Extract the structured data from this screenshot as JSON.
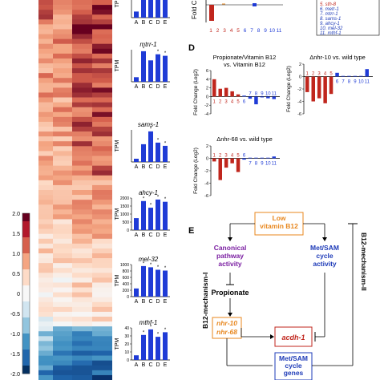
{
  "colorbar": {
    "ticks": [
      "2.0",
      "1.5",
      "1.0",
      "0.5",
      "0",
      "-0.5",
      "-1.0",
      "-1.5",
      "-2.0"
    ]
  },
  "expression_panels": [
    {
      "gene": "",
      "ylabel": "TPM",
      "categories": [
        "A",
        "B",
        "C",
        "D",
        "E"
      ],
      "values": [
        0.2,
        1.0,
        1.0,
        1.0,
        1.0
      ],
      "stars": [
        false,
        false,
        false,
        false,
        false
      ]
    },
    {
      "gene": "mtrr-1",
      "ylabel": "TPM",
      "categories": [
        "A",
        "B",
        "C",
        "D",
        "E"
      ],
      "values": [
        0.15,
        1.0,
        0.7,
        0.9,
        0.85
      ],
      "stars": [
        false,
        true,
        false,
        true,
        true
      ]
    },
    {
      "gene": "sams-1",
      "ylabel": "TPM",
      "categories": [
        "A",
        "B",
        "C",
        "D",
        "E"
      ],
      "values": [
        0.1,
        0.55,
        0.95,
        0.6,
        0.5
      ],
      "stars": [
        false,
        false,
        true,
        true,
        true
      ]
    },
    {
      "gene": "ahcy-1",
      "ylabel": "TPM",
      "categories": [
        "A",
        "B",
        "C",
        "D",
        "E"
      ],
      "ticks": [
        "2000",
        "1500",
        "1000",
        "500",
        "0"
      ],
      "values": [
        800,
        1950,
        1500,
        2050,
        1900
      ],
      "stars": [
        false,
        true,
        true,
        true,
        true
      ]
    },
    {
      "gene": "mel-32",
      "ylabel": "TPM",
      "categories": [
        "A",
        "B",
        "C",
        "D",
        "E"
      ],
      "ticks": [
        "1000",
        "800",
        "600",
        "400",
        "200",
        "0"
      ],
      "values": [
        200,
        750,
        720,
        660,
        640
      ],
      "stars": [
        false,
        true,
        true,
        true,
        true
      ]
    },
    {
      "gene": "mthf-1",
      "ylabel": "TPM",
      "categories": [
        "A",
        "B",
        "C",
        "D",
        "E"
      ],
      "ticks": [
        "40",
        "30",
        "20",
        "10",
        "0"
      ],
      "values": [
        5,
        27,
        33,
        25,
        30
      ],
      "stars": [
        false,
        true,
        true,
        true,
        true
      ]
    }
  ],
  "panel_c_partial": {
    "ylabel": "Fold Change",
    "x": [
      "1",
      "2",
      "3",
      "4",
      "5",
      "6",
      "7",
      "8",
      "9",
      "10",
      "11"
    ],
    "legend": [
      "5. sth-8",
      "6. metr-1",
      "7. mtrr-1",
      "8. sams-1",
      "9. ahcy-1",
      "10. mel-32",
      "11. mthf-1"
    ]
  },
  "panel_d": {
    "letter": "D",
    "plots": [
      {
        "title_line1": "Propionate/Vitamin B12",
        "title_line2": "vs. Vitamin B12",
        "ylabel": "Fold Change (Log2)",
        "ticks": [
          "6",
          "4",
          "2",
          "0",
          "-2",
          "-4"
        ],
        "x": [
          "1",
          "2",
          "3",
          "4",
          "5",
          "6",
          "7",
          "8",
          "9",
          "10",
          "11"
        ],
        "values": [
          4.0,
          1.8,
          2.0,
          1.2,
          0.5,
          0.2,
          -0.5,
          -1.8,
          -0.2,
          -0.4,
          -0.6
        ]
      },
      {
        "title_line1": "Δnhr-10 vs. wild type",
        "title_line2": "",
        "ylabel": "Fold Change (Log2)",
        "ticks": [
          "2",
          "0",
          "-2",
          "-4",
          "-6"
        ],
        "x": [
          "1",
          "2",
          "3",
          "4",
          "5",
          "6",
          "7",
          "8",
          "9",
          "10",
          "11"
        ],
        "values": [
          -2.5,
          -4.0,
          -3.5,
          -4.3,
          -2.8,
          0.6,
          0.1,
          0.1,
          0.1,
          0.1,
          1.2
        ]
      },
      {
        "title_line1": "Δnhr-68 vs. wild type",
        "title_line2": "",
        "ylabel": "Fold Change (Log2)",
        "ticks": [
          "2",
          "0",
          "-2",
          "-4",
          "-6"
        ],
        "x": [
          "1",
          "2",
          "3",
          "4",
          "5",
          "6",
          "7",
          "8",
          "9",
          "10",
          "11"
        ],
        "values": [
          -0.5,
          -3.5,
          -1.5,
          -0.8,
          -2.2,
          -0.2,
          0.1,
          0.1,
          0.1,
          0.1,
          0.3
        ]
      }
    ]
  },
  "panel_e": {
    "letter": "E",
    "low_b12": "Low\nvitamin B12",
    "canonical": "Canonical\npathway\nactivity",
    "metsam_activity": "Met/SAM\ncycle\nactivity",
    "propionate": "Propionate",
    "nhr10": "nhr-10",
    "nhr68": "nhr-68",
    "acdh1": "acdh-1",
    "metsam_genes": "Met/SAM\ncycle\ngenes",
    "mech1": "B12-mechanism-I",
    "mech2": "B12-mechanism-II"
  },
  "colors": {
    "blue_bar": "#1f3bd6",
    "red_bar": "#c0261d",
    "purple": "#7b1fa2",
    "blue_text": "#1e3bb8",
    "orange": "#e8871e",
    "red_text": "#c0261d"
  }
}
